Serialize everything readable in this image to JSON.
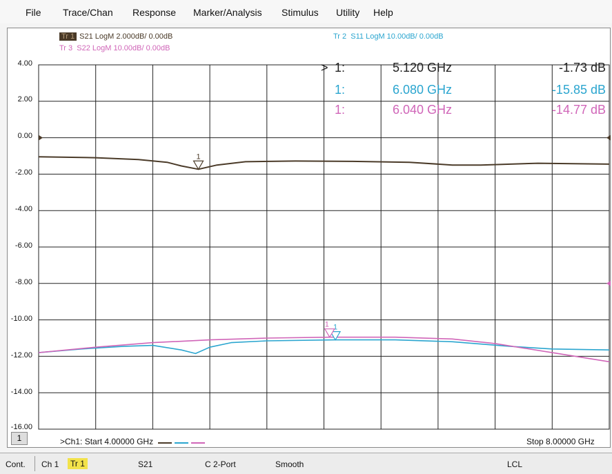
{
  "menu": [
    "File",
    "Trace/Chan",
    "Response",
    "Marker/Analysis",
    "Stimulus",
    "Utility",
    "Help"
  ],
  "traces": [
    {
      "id": "Tr 1",
      "text": "S21 LogM 2.000dB/ 0.00dB",
      "color": "#4a3a28"
    },
    {
      "id": "Tr 2",
      "text": "S11 LogM 10.00dB/ 0.00dB",
      "color": "#2aa5cf"
    },
    {
      "id": "Tr 3",
      "text": "S22 LogM 10.00dB/ 0.00dB",
      "color": "#d065b8"
    }
  ],
  "colors": {
    "tr1": "#4a3a28",
    "tr2": "#2aa5cf",
    "tr3": "#d065b8",
    "grid": "#222222"
  },
  "markers": [
    {
      "prefix": ">",
      "num": "1:",
      "freq": "5.120 GHz",
      "value": "-1.73 dB"
    },
    {
      "prefix": "",
      "num": "1:",
      "freq": "6.080 GHz",
      "value": "-15.85 dB"
    },
    {
      "prefix": "",
      "num": "1:",
      "freq": "6.040 GHz",
      "value": "-14.77 dB"
    }
  ],
  "marker_label": "1",
  "chart_data": {
    "type": "line",
    "x_unit": "GHz",
    "xlim": [
      4.0,
      8.0
    ],
    "ylim": [
      -16,
      4
    ],
    "y_ticks": [
      "4.00",
      "2.00",
      "0.00",
      "-2.00",
      "-4.00",
      "-6.00",
      "-8.00",
      "-10.00",
      "-12.00",
      "-14.00",
      "-16.00"
    ],
    "grid": true,
    "series": [
      {
        "name": "Tr 1",
        "x": [
          4.0,
          4.4,
          4.7,
          4.9,
          5.0,
          5.12,
          5.25,
          5.45,
          5.8,
          6.2,
          6.6,
          6.9,
          7.1,
          7.5,
          8.0
        ],
        "y": [
          -1.05,
          -1.1,
          -1.2,
          -1.35,
          -1.55,
          -1.73,
          -1.5,
          -1.32,
          -1.28,
          -1.3,
          -1.35,
          -1.5,
          -1.5,
          -1.4,
          -1.45
        ]
      },
      {
        "name": "Tr 2",
        "x": [
          4.0,
          4.3,
          4.6,
          4.8,
          5.0,
          5.1,
          5.2,
          5.35,
          5.6,
          6.08,
          6.5,
          6.9,
          7.3,
          7.6,
          8.0
        ],
        "y": [
          -11.8,
          -11.6,
          -11.45,
          -11.4,
          -11.65,
          -11.85,
          -11.5,
          -11.25,
          -11.15,
          -11.1,
          -11.1,
          -11.2,
          -11.45,
          -11.6,
          -11.65
        ]
      },
      {
        "name": "Tr 3",
        "x": [
          4.0,
          4.4,
          4.8,
          5.2,
          5.6,
          6.04,
          6.5,
          6.9,
          7.2,
          7.6,
          8.0
        ],
        "y": [
          -11.8,
          -11.5,
          -11.25,
          -11.1,
          -11.0,
          -10.95,
          -10.95,
          -11.05,
          -11.3,
          -11.8,
          -12.3
        ]
      }
    ],
    "marker_points": [
      {
        "series": "Tr 1",
        "x": 5.12,
        "y": -1.73
      },
      {
        "series": "Tr 2",
        "x": 6.08,
        "y": -11.1
      },
      {
        "series": "Tr 3",
        "x": 6.04,
        "y": -10.95
      }
    ]
  },
  "channel_badge": "1",
  "start_label": ">Ch1:  Start  4.00000 GHz",
  "stop_label": "Stop  8.00000 GHz",
  "status": [
    "Cont.",
    "Ch 1",
    "Tr 1",
    "S21",
    "C  2-Port",
    "Smooth",
    "LCL"
  ]
}
